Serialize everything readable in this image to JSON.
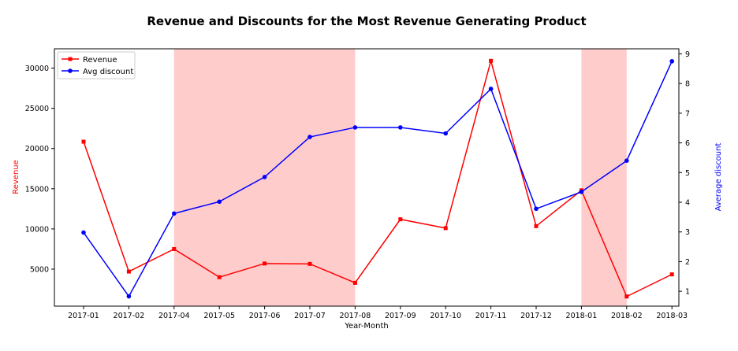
{
  "chart_data": {
    "type": "line",
    "title": "Revenue and Discounts for the Most Revenue Generating Product",
    "xlabel": "Year-Month",
    "ylabel_left": "Revenue",
    "ylabel_right": "Average discount",
    "categories": [
      "2017-01",
      "2017-02",
      "2017-04",
      "2017-05",
      "2017-06",
      "2017-07",
      "2017-08",
      "2017-09",
      "2017-10",
      "2017-11",
      "2017-12",
      "2018-01",
      "2018-02",
      "2018-03"
    ],
    "series": [
      {
        "name": "Revenue",
        "axis": "left",
        "color": "#ff0000",
        "marker": "square",
        "values": [
          20850,
          4700,
          7500,
          4000,
          5700,
          5650,
          3300,
          11200,
          10100,
          30900,
          10350,
          14800,
          1600,
          4350
        ]
      },
      {
        "name": "Avg discount",
        "axis": "right",
        "color": "#0000ff",
        "marker": "circle",
        "values": [
          2.98,
          0.83,
          3.62,
          4.02,
          4.85,
          6.2,
          6.52,
          6.52,
          6.32,
          7.82,
          3.78,
          4.35,
          5.4,
          8.75
        ]
      }
    ],
    "y_left": {
      "ylim": [
        400,
        32400
      ],
      "ticks": [
        5000,
        10000,
        15000,
        20000,
        25000,
        30000
      ],
      "tick_labels": [
        "5000",
        "10000",
        "15000",
        "20000",
        "25000",
        "30000"
      ]
    },
    "y_right": {
      "ylim": [
        0.5,
        9.17
      ],
      "ticks": [
        1,
        2,
        3,
        4,
        5,
        6,
        7,
        8,
        9
      ],
      "tick_labels": [
        "1",
        "2",
        "3",
        "4",
        "5",
        "6",
        "7",
        "8",
        "9"
      ]
    },
    "shaded_regions": [
      {
        "from": "2017-04",
        "to": "2017-08",
        "color": "#ffcccc"
      },
      {
        "from": "2018-01",
        "to": "2018-02",
        "color": "#ffcccc"
      }
    ],
    "legend": {
      "placement": "top-left",
      "entries": [
        "Revenue",
        "Avg discount"
      ]
    },
    "grid": false
  }
}
